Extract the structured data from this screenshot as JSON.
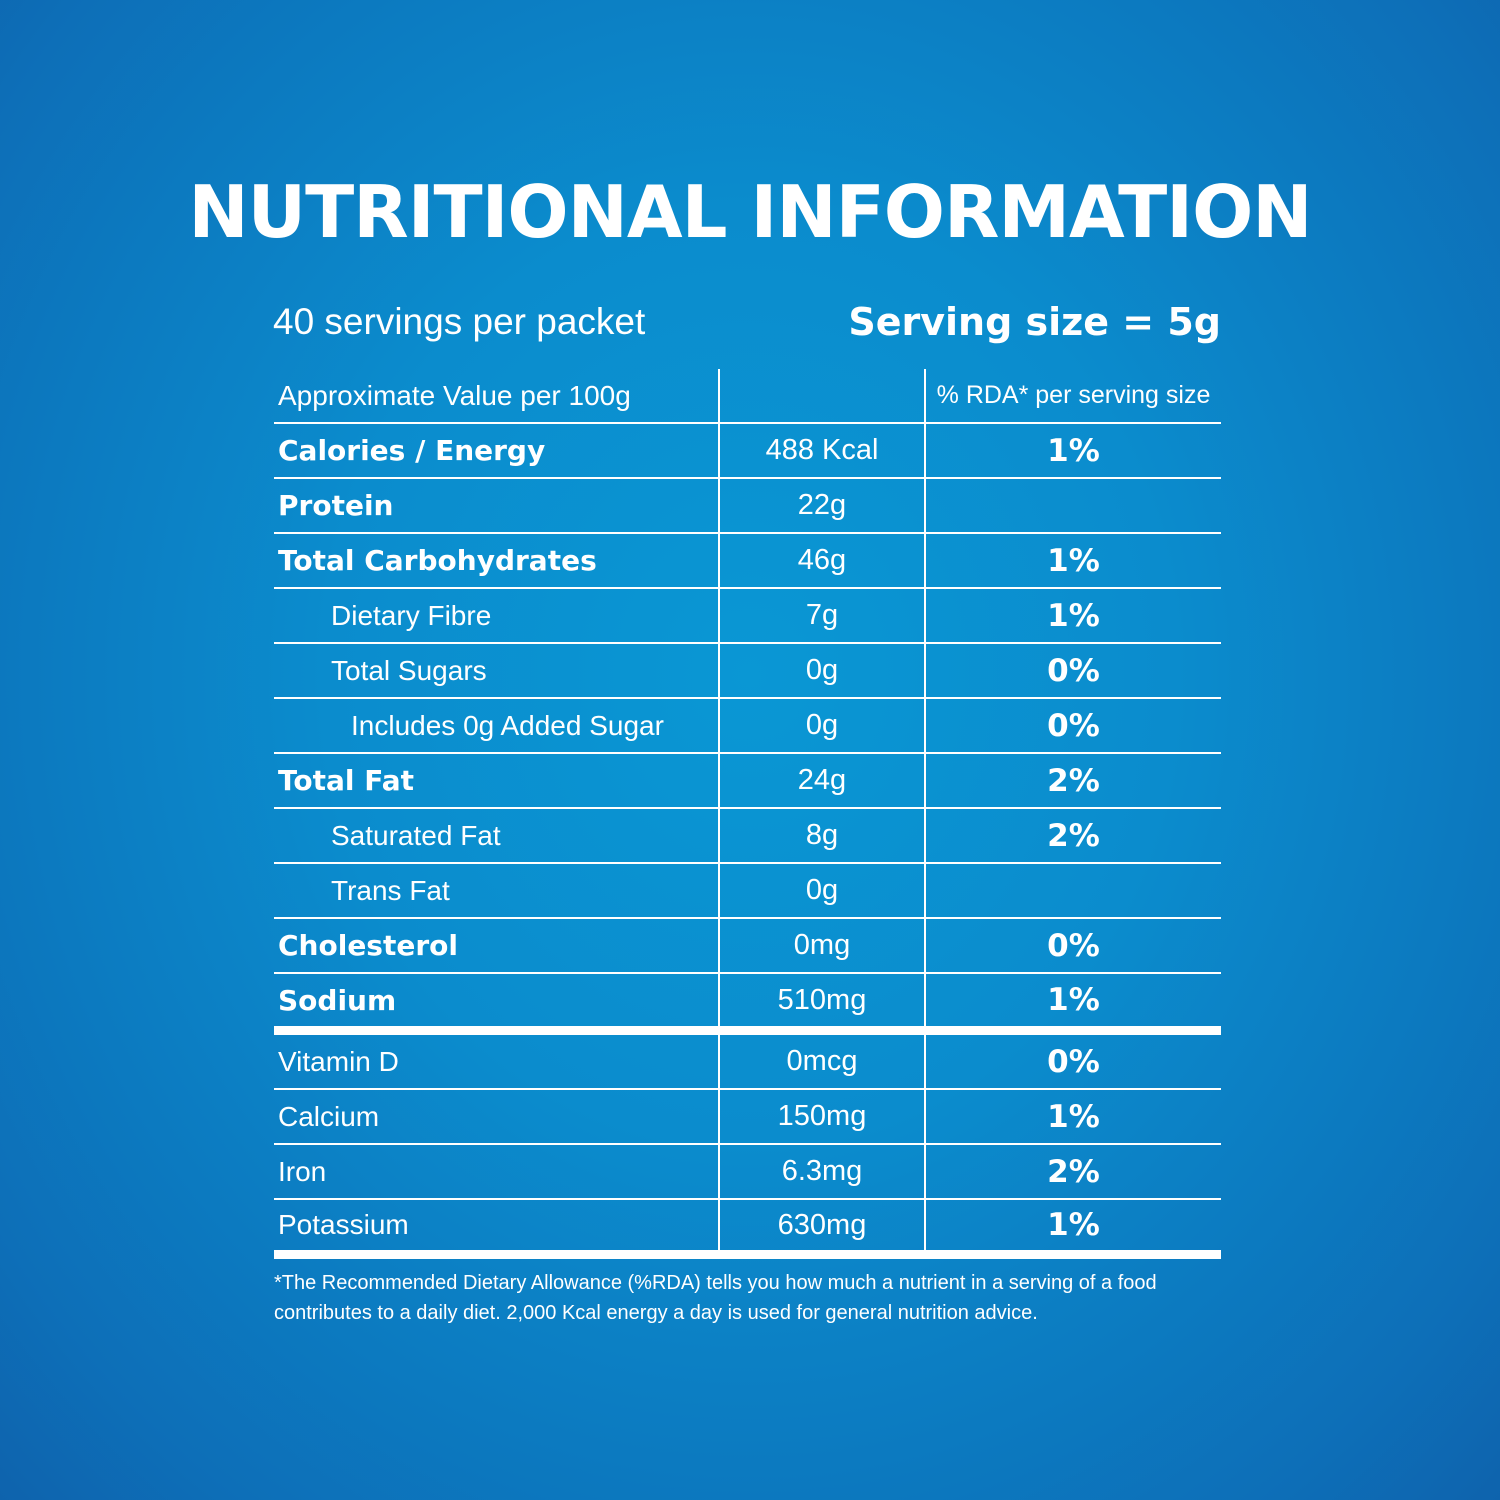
{
  "title": "NUTRITIONAL INFORMATION",
  "servings_per_packet": "40 servings per packet",
  "serving_size": "Serving size = 5g",
  "header": {
    "col1": "Approximate Value per 100g",
    "col2": "",
    "col3": "% RDA* per serving size"
  },
  "rows": [
    {
      "name": "Calories / Energy",
      "value": "488 Kcal",
      "rda": "1%"
    },
    {
      "name": "Protein",
      "value": "22g",
      "rda": ""
    },
    {
      "name": "Total Carbohydrates",
      "value": "46g",
      "rda": "1%"
    },
    {
      "name": "Dietary Fibre",
      "value": "7g",
      "rda": "1%"
    },
    {
      "name": "Total Sugars",
      "value": "0g",
      "rda": "0%"
    },
    {
      "name": "Includes 0g Added Sugar",
      "value": "0g",
      "rda": "0%"
    },
    {
      "name": "Total Fat",
      "value": "24g",
      "rda": "2%"
    },
    {
      "name": "Saturated Fat",
      "value": "8g",
      "rda": "2%"
    },
    {
      "name": "Trans Fat",
      "value": "0g",
      "rda": ""
    },
    {
      "name": "Cholesterol",
      "value": "0mg",
      "rda": "0%"
    },
    {
      "name": "Sodium",
      "value": "510mg",
      "rda": "1%"
    },
    {
      "name": "Vitamin D",
      "value": "0mcg",
      "rda": "0%"
    },
    {
      "name": "Calcium",
      "value": "150mg",
      "rda": "1%"
    },
    {
      "name": "Iron",
      "value": "6.3mg",
      "rda": "2%"
    },
    {
      "name": "Potassium",
      "value": "630mg",
      "rda": "1%"
    }
  ],
  "footnote": "*The Recommended Dietary Allowance (%RDA) tells you how much a nutrient in a serving of a food contributes to a daily diet. 2,000 Kcal energy a day is used for general nutrition advice.",
  "colors": {
    "background": "#0a8fd0",
    "text": "#ffffff"
  }
}
